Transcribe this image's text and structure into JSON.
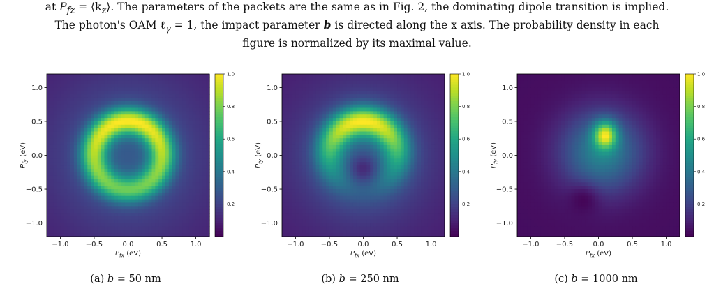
{
  "caption": {
    "line1_a": "at ",
    "line1_sym": "P",
    "line1_sub": "fz",
    "line1_b": " = ⟨k",
    "line1_sub2": "z",
    "line1_c": "⟩. The parameters of the packets are the same as in Fig. 2, the dominating dipole transition is implied.",
    "line2_a": "The photon's OAM ℓ",
    "line2_sub": "γ",
    "line2_b": " = 1, the impact parameter ",
    "line2_bold": "b",
    "line2_c": " is directed along the x axis. The probability density in each",
    "line3": "figure is normalized by its maximal value."
  },
  "axes": {
    "xlabel_sym": "P",
    "xlabel_sub": "fx",
    "xlabel_unit": " (eV)",
    "ylabel_sym": "P",
    "ylabel_sub": "fy",
    "ylabel_unit": " (eV)",
    "xticks": [
      "−1.0",
      "−0.5",
      "0.0",
      "0.5",
      "1.0"
    ],
    "yticks": [
      "1.0",
      "0.5",
      "0.0",
      "−0.5",
      "−1.0"
    ],
    "cbar_ticks": [
      "1.0",
      "0.8",
      "0.6",
      "0.4",
      "0.2"
    ]
  },
  "subcaptions": [
    {
      "label": "(a) ",
      "var": "b",
      "value": " = 50 nm"
    },
    {
      "label": "(b) ",
      "var": "b",
      "value": " = 250 nm"
    },
    {
      "label": "(c) ",
      "var": "b",
      "value": " = 1000 nm"
    }
  ],
  "colormap": "viridis",
  "chart_data": [
    {
      "type": "heatmap",
      "xlim": [
        -1.2,
        1.2
      ],
      "ylim": [
        -1.2,
        1.2
      ],
      "colorbar_range": [
        0.0,
        1.0
      ],
      "pattern": "ring",
      "ring_center": [
        0.0,
        0.0
      ],
      "ring_radius": 0.5,
      "peak_location": [
        0.1,
        0.5
      ]
    },
    {
      "type": "heatmap",
      "xlim": [
        -1.2,
        1.2
      ],
      "ylim": [
        -1.2,
        1.2
      ],
      "colorbar_range": [
        0.0,
        1.0
      ],
      "pattern": "crescent",
      "ring_center": [
        0.0,
        0.0
      ],
      "ring_radius": 0.5,
      "peak_location": [
        0.0,
        0.5
      ]
    },
    {
      "type": "heatmap",
      "xlim": [
        -1.2,
        1.2
      ],
      "ylim": [
        -1.2,
        1.2
      ],
      "colorbar_range": [
        0.0,
        1.0
      ],
      "pattern": "spot",
      "peak_location": [
        0.1,
        0.3
      ]
    }
  ]
}
